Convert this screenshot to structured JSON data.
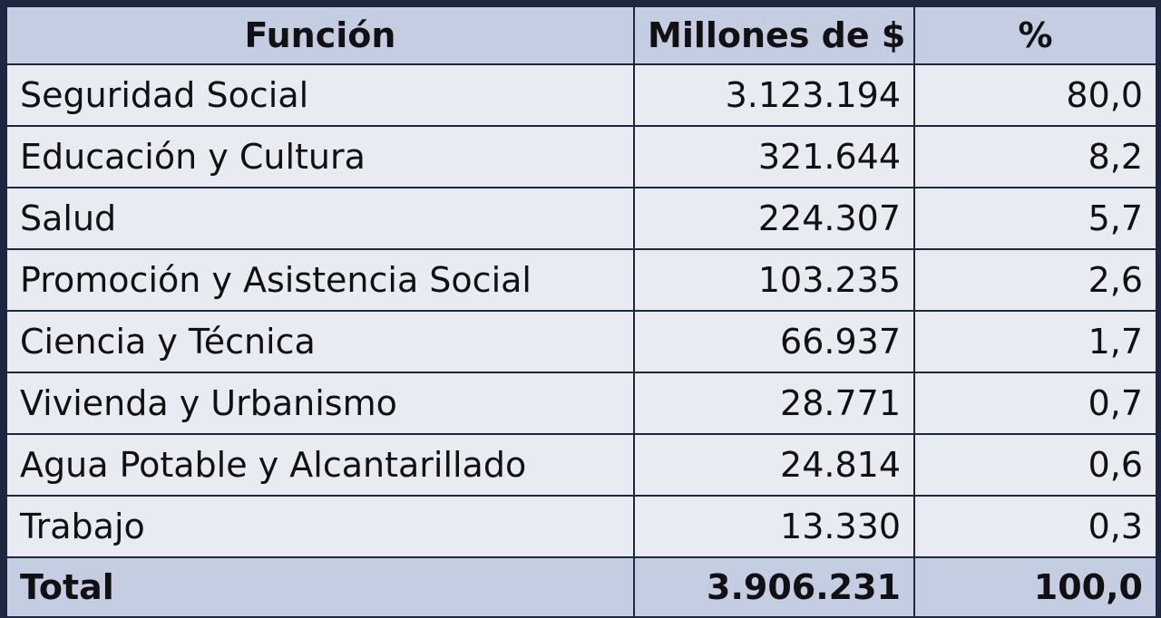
{
  "chart_data": {
    "type": "table",
    "columns": [
      "Función",
      "Millones de $",
      "%"
    ],
    "rows": [
      {
        "funcion": "Seguridad Social",
        "millones": "3.123.194",
        "pct": "80,0"
      },
      {
        "funcion": "Educación y Cultura",
        "millones": "321.644",
        "pct": "8,2"
      },
      {
        "funcion": "Salud",
        "millones": "224.307",
        "pct": "5,7"
      },
      {
        "funcion": "Promoción y Asistencia Social",
        "millones": "103.235",
        "pct": "2,6"
      },
      {
        "funcion": "Ciencia y Técnica",
        "millones": "66.937",
        "pct": "1,7"
      },
      {
        "funcion": "Vivienda y Urbanismo",
        "millones": "28.771",
        "pct": "0,7"
      },
      {
        "funcion": "Agua Potable y Alcantarillado",
        "millones": "24.814",
        "pct": "0,6"
      },
      {
        "funcion": "Trabajo",
        "millones": "13.330",
        "pct": "0,3"
      }
    ],
    "total": {
      "funcion": "Total",
      "millones": "3.906.231",
      "pct": "100,0"
    }
  },
  "colors": {
    "border": "#1d2740",
    "header_bg": "#c5cde3",
    "row_bg": "#e9ebf3"
  }
}
